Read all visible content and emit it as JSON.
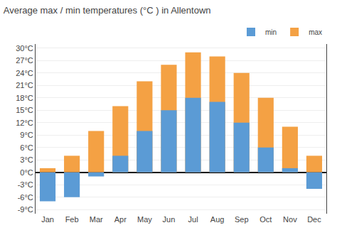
{
  "chart_data": {
    "type": "bar",
    "title": "Average max / min temperatures (°C ) in Allentown",
    "categories": [
      "Jan",
      "Feb",
      "Mar",
      "Apr",
      "May",
      "Jun",
      "Jul",
      "Aug",
      "Sep",
      "Oct",
      "Nov",
      "Dec"
    ],
    "series": [
      {
        "name": "max",
        "color": "#f4a144",
        "values": [
          1,
          4,
          10,
          16,
          22,
          26,
          29,
          28,
          24,
          18,
          11,
          4
        ]
      },
      {
        "name": "min",
        "color": "#5b9bd5",
        "values": [
          -7,
          -6,
          -1,
          4,
          10,
          15,
          18,
          17,
          12,
          6,
          1,
          -4
        ]
      }
    ],
    "ylim": [
      -10,
      31
    ],
    "yticks": [
      {
        "value": -9,
        "label": "-9°C"
      },
      {
        "value": -6,
        "label": "-6°C"
      },
      {
        "value": -3,
        "label": "-3°C"
      },
      {
        "value": 0,
        "label": "0°C"
      },
      {
        "value": 3,
        "label": "3°C"
      },
      {
        "value": 6,
        "label": "6°C"
      },
      {
        "value": 9,
        "label": "9°C"
      },
      {
        "value": 12,
        "label": "12°C"
      },
      {
        "value": 15,
        "label": "15°C"
      },
      {
        "value": 18,
        "label": "18°C"
      },
      {
        "value": 21,
        "label": "21°C"
      },
      {
        "value": 24,
        "label": "24°C"
      },
      {
        "value": 27,
        "label": "27°C"
      },
      {
        "value": 30,
        "label": "30°C"
      }
    ],
    "grid": true,
    "legend": "upper right"
  }
}
